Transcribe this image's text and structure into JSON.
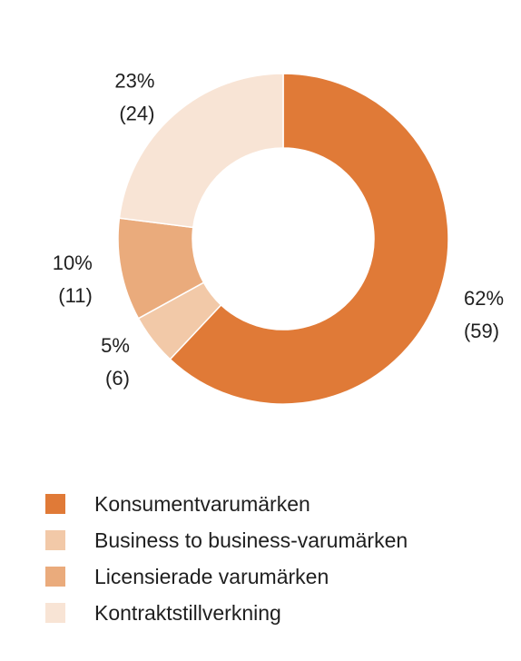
{
  "chart_data": {
    "type": "pie",
    "variant": "donut",
    "title": "",
    "categories": [
      "Konsumentvarumärken",
      "Business to business-varumärken",
      "Licensierade varumärken",
      "Kontraktstillverkning"
    ],
    "values": [
      62,
      5,
      10,
      23
    ],
    "percent_labels": [
      "62%",
      "5%",
      "10%",
      "23%"
    ],
    "count_labels": [
      "(59)",
      "(6)",
      "(11)",
      "(24)"
    ],
    "colors": [
      "#e07a37",
      "#f2c9a8",
      "#eaab7c",
      "#f8e4d5"
    ],
    "legend_position": "bottom-left",
    "legend_order": [
      0,
      1,
      2,
      3
    ]
  }
}
